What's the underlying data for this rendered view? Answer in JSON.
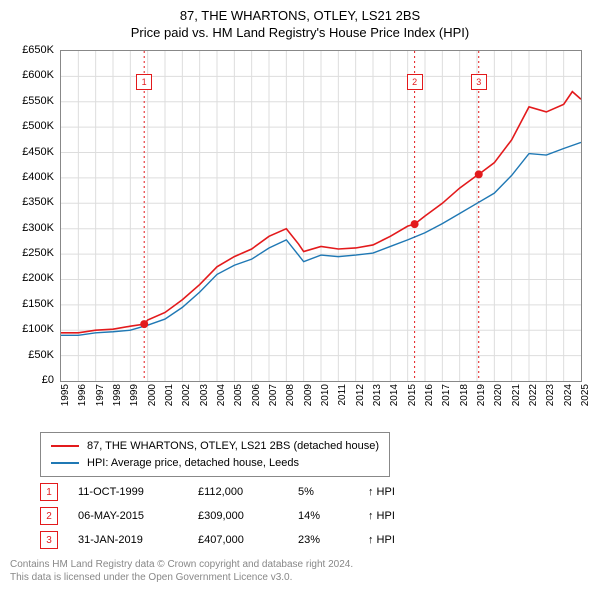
{
  "title_line1": "87, THE WHARTONS, OTLEY, LS21 2BS",
  "title_line2": "Price paid vs. HM Land Registry's House Price Index (HPI)",
  "chart": {
    "type": "line",
    "background_color": "#ffffff",
    "border_color": "#888888",
    "grid_color": "#dddddd",
    "title_fontsize": 13,
    "label_fontsize": 11,
    "tick_fontsize": 10,
    "x": {
      "min": 1995,
      "max": 2025,
      "ticks": [
        1995,
        1996,
        1997,
        1998,
        1999,
        2000,
        2001,
        2002,
        2003,
        2004,
        2005,
        2006,
        2007,
        2008,
        2009,
        2010,
        2011,
        2012,
        2013,
        2014,
        2015,
        2016,
        2017,
        2018,
        2019,
        2020,
        2021,
        2022,
        2023,
        2024,
        2025
      ],
      "tick_labels": [
        "1995",
        "1996",
        "1997",
        "1998",
        "1999",
        "2000",
        "2001",
        "2002",
        "2003",
        "2004",
        "2005",
        "2006",
        "2007",
        "2008",
        "2009",
        "2010",
        "2011",
        "2012",
        "2013",
        "2014",
        "2015",
        "2016",
        "2017",
        "2018",
        "2019",
        "2020",
        "2021",
        "2022",
        "2023",
        "2024",
        "2025"
      ],
      "rotation": -90
    },
    "y": {
      "min": 0,
      "max": 650000,
      "ticks": [
        0,
        50000,
        100000,
        150000,
        200000,
        250000,
        300000,
        350000,
        400000,
        450000,
        500000,
        550000,
        600000,
        650000
      ],
      "tick_labels": [
        "£0",
        "£50K",
        "£100K",
        "£150K",
        "£200K",
        "£250K",
        "£300K",
        "£350K",
        "£400K",
        "£450K",
        "£500K",
        "£550K",
        "£600K",
        "£650K"
      ]
    },
    "series": [
      {
        "name": "87, THE WHARTONS, OTLEY, LS21 2BS (detached house)",
        "color": "#e31a1c",
        "line_width": 1.6,
        "data": {
          "x": [
            1995,
            1996,
            1997,
            1998,
            1999,
            1999.8,
            2000,
            2001,
            2002,
            2003,
            2004,
            2005,
            2006,
            2007,
            2008,
            2008.7,
            2009,
            2010,
            2011,
            2012,
            2013,
            2014,
            2015,
            2015.4,
            2016,
            2017,
            2018,
            2019,
            2019.1,
            2020,
            2021,
            2022,
            2023,
            2024,
            2024.5,
            2025
          ],
          "y": [
            95000,
            95000,
            100000,
            102000,
            108000,
            112000,
            120000,
            135000,
            160000,
            190000,
            225000,
            245000,
            260000,
            285000,
            300000,
            270000,
            255000,
            265000,
            260000,
            262000,
            268000,
            285000,
            305000,
            309000,
            325000,
            350000,
            380000,
            405000,
            407000,
            430000,
            475000,
            540000,
            530000,
            545000,
            570000,
            555000
          ]
        }
      },
      {
        "name": "HPI: Average price, detached house, Leeds",
        "color": "#1f78b4",
        "line_width": 1.4,
        "data": {
          "x": [
            1995,
            1996,
            1997,
            1998,
            1999,
            2000,
            2001,
            2002,
            2003,
            2004,
            2005,
            2006,
            2007,
            2008,
            2008.7,
            2009,
            2010,
            2011,
            2012,
            2013,
            2014,
            2015,
            2016,
            2017,
            2018,
            2019,
            2020,
            2021,
            2022,
            2023,
            2024,
            2025
          ],
          "y": [
            90000,
            90000,
            95000,
            97000,
            100000,
            110000,
            122000,
            145000,
            175000,
            210000,
            228000,
            240000,
            262000,
            278000,
            248000,
            235000,
            248000,
            245000,
            248000,
            252000,
            265000,
            278000,
            292000,
            310000,
            330000,
            350000,
            370000,
            405000,
            448000,
            445000,
            458000,
            470000
          ]
        }
      }
    ],
    "event_markers": [
      {
        "index": 1,
        "x": 1999.8,
        "y": 112000,
        "badge_top_offset": 0.07,
        "color": "#e31a1c"
      },
      {
        "index": 2,
        "x": 2015.4,
        "y": 309000,
        "badge_top_offset": 0.07,
        "color": "#e31a1c"
      },
      {
        "index": 3,
        "x": 2019.1,
        "y": 407000,
        "badge_top_offset": 0.07,
        "color": "#e31a1c"
      }
    ],
    "marker_line_color": "#e31a1c",
    "marker_line_dash": "2,3",
    "marker_point_radius": 4
  },
  "legend": {
    "items": [
      {
        "color": "#e31a1c",
        "label": "87, THE WHARTONS, OTLEY, LS21 2BS (detached house)"
      },
      {
        "color": "#1f78b4",
        "label": "HPI: Average price, detached house, Leeds"
      }
    ]
  },
  "events": [
    {
      "badge": "1",
      "date": "11-OCT-1999",
      "price": "£112,000",
      "pct": "5%",
      "suffix": "↑ HPI",
      "color": "#e31a1c"
    },
    {
      "badge": "2",
      "date": "06-MAY-2015",
      "price": "£309,000",
      "pct": "14%",
      "suffix": "↑ HPI",
      "color": "#e31a1c"
    },
    {
      "badge": "3",
      "date": "31-JAN-2019",
      "price": "£407,000",
      "pct": "23%",
      "suffix": "↑ HPI",
      "color": "#e31a1c"
    }
  ],
  "footer_line1": "Contains HM Land Registry data © Crown copyright and database right 2024.",
  "footer_line2": "This data is licensed under the Open Government Licence v3.0.",
  "footer_color": "#888888"
}
